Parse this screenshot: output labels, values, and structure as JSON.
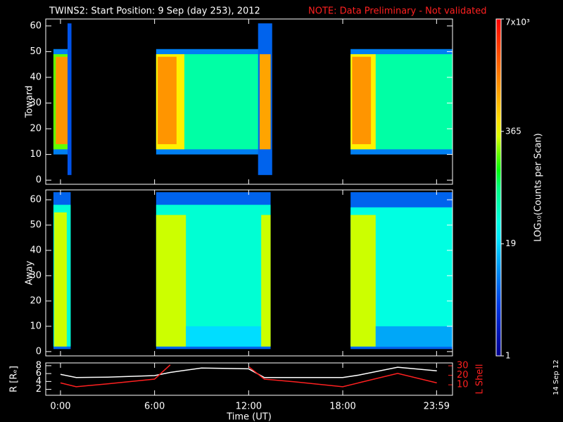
{
  "title": "TWINS2: Start Position:  9 Sep (day 253), 2012",
  "note": "NOTE: Data Preliminary - Not validated",
  "date_stamp": "14 Sep 12",
  "colorbar": {
    "label": "LOG₁₀(Counts per Scan)",
    "lim": [
      1,
      7000
    ],
    "log": true,
    "ticks": [
      {
        "value": 7000,
        "label": "7x10³"
      },
      365,
      19,
      1
    ]
  },
  "chart_data": [
    {
      "type": "heatmap",
      "ylabel": "Toward",
      "xlim": [
        -0.94,
        25.0
      ],
      "ylim": [
        -1.6,
        62.7
      ],
      "yticks": [
        0,
        10,
        20,
        30,
        40,
        50,
        60
      ],
      "cells": [
        {
          "t": [
            -0.45,
            0.65
          ],
          "e": [
            10,
            51
          ],
          "value": 8
        },
        {
          "t": [
            -0.45,
            0.65
          ],
          "e": [
            12,
            49
          ],
          "value": 200
        },
        {
          "t": [
            -0.3,
            0.5
          ],
          "e": [
            14,
            48
          ],
          "value": 1200
        },
        {
          "t": [
            0.45,
            0.7
          ],
          "e": [
            2,
            61
          ],
          "value": 5
        },
        {
          "t": [
            6.1,
            13.4
          ],
          "e": [
            10,
            51
          ],
          "value": 8
        },
        {
          "t": [
            6.1,
            13.4
          ],
          "e": [
            12,
            49
          ],
          "value": 60
        },
        {
          "t": [
            6.1,
            7.9
          ],
          "e": [
            12,
            49
          ],
          "value": 400
        },
        {
          "t": [
            6.2,
            7.4
          ],
          "e": [
            14,
            48
          ],
          "value": 1200
        },
        {
          "t": [
            12.6,
            13.5
          ],
          "e": [
            2,
            61
          ],
          "value": 6
        },
        {
          "t": [
            12.7,
            13.4
          ],
          "e": [
            12,
            49
          ],
          "value": 1000
        },
        {
          "t": [
            18.5,
            25.0
          ],
          "e": [
            10,
            51
          ],
          "value": 8
        },
        {
          "t": [
            18.5,
            25.0
          ],
          "e": [
            12,
            49
          ],
          "value": 60
        },
        {
          "t": [
            18.5,
            20.1
          ],
          "e": [
            12,
            49
          ],
          "value": 400
        },
        {
          "t": [
            18.6,
            19.8
          ],
          "e": [
            14,
            48
          ],
          "value": 1200
        }
      ]
    },
    {
      "type": "heatmap",
      "ylabel": "Away",
      "xlim": [
        -0.94,
        25.0
      ],
      "ylim": [
        -1.7,
        63.9
      ],
      "yticks": [
        0,
        10,
        20,
        30,
        40,
        50,
        60
      ],
      "cells": [
        {
          "t": [
            -0.45,
            0.65
          ],
          "e": [
            1,
            63
          ],
          "value": 6
        },
        {
          "t": [
            -0.45,
            0.65
          ],
          "e": [
            2,
            58
          ],
          "value": 40
        },
        {
          "t": [
            -0.4,
            0.4
          ],
          "e": [
            2,
            55
          ],
          "value": 300
        },
        {
          "t": [
            6.1,
            13.4
          ],
          "e": [
            1,
            63
          ],
          "value": 6
        },
        {
          "t": [
            6.1,
            13.4
          ],
          "e": [
            2,
            58
          ],
          "value": 40
        },
        {
          "t": [
            6.1,
            8.0
          ],
          "e": [
            2,
            54
          ],
          "value": 300
        },
        {
          "t": [
            8.0,
            12.8
          ],
          "e": [
            2,
            10
          ],
          "value": 20
        },
        {
          "t": [
            12.8,
            13.4
          ],
          "e": [
            2,
            54
          ],
          "value": 300
        },
        {
          "t": [
            18.5,
            25.0
          ],
          "e": [
            1,
            63
          ],
          "value": 6
        },
        {
          "t": [
            18.5,
            25.0
          ],
          "e": [
            2,
            57
          ],
          "value": 35
        },
        {
          "t": [
            18.5,
            20.1
          ],
          "e": [
            2,
            54
          ],
          "value": 300
        },
        {
          "t": [
            20.1,
            25.0
          ],
          "e": [
            2,
            10
          ],
          "value": 12
        }
      ]
    },
    {
      "type": "line",
      "xlabel": "Time (UT)",
      "ylabel": "R [Rₑ]",
      "y2label": "L Shell",
      "xlim": [
        -0.94,
        25.0
      ],
      "ylim": [
        0.5,
        8.7
      ],
      "yticks": [
        2,
        4,
        6,
        8
      ],
      "y2lim": [
        -1,
        33
      ],
      "y2ticks": [
        10,
        20,
        30
      ],
      "xticks": [
        {
          "value": 0,
          "label": "0:00"
        },
        {
          "value": 6,
          "label": "6:00"
        },
        {
          "value": 12,
          "label": "12:00"
        },
        {
          "value": 18,
          "label": "18:00"
        },
        {
          "value": 23.983,
          "label": "23:59"
        }
      ],
      "x": [
        0,
        1,
        3,
        6,
        7,
        9,
        12,
        13,
        15,
        18,
        19,
        21.5,
        24
      ],
      "series": [
        {
          "name": "R",
          "color": "#ffffff",
          "values": [
            5.8,
            5,
            5.1,
            5.5,
            6.3,
            7.4,
            7.2,
            5,
            5,
            5,
            5.6,
            7.6,
            6.7
          ]
        },
        {
          "name": "L Shell",
          "color": "#ff2020",
          "axis": "y2",
          "values": [
            12,
            8,
            11,
            16,
            31,
            null,
            29,
            16,
            13,
            8,
            12,
            22,
            12
          ]
        }
      ]
    }
  ]
}
